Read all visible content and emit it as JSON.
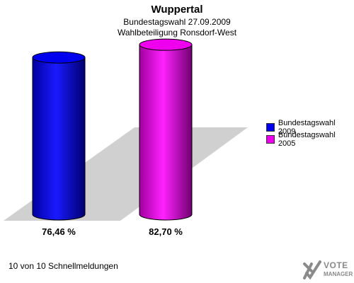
{
  "chart_data": {
    "type": "bar",
    "title": "Wuppertal",
    "subtitle_line1": "Bundestagswahl 27.09.2009",
    "subtitle_line2": "Wahlbeteiligung Ronsdorf-West",
    "categories": [
      "Bundestagswahl 2009",
      "Bundestagswahl 2005"
    ],
    "values": [
      76.46,
      82.7
    ],
    "value_labels": [
      "76,46 %",
      "82,70 %"
    ],
    "colors": [
      "#0000ee",
      "#ee00ee"
    ],
    "legend": [
      {
        "label": "Bundestagswahl 2009",
        "color": "#0000ee"
      },
      {
        "label": "Bundestagswahl 2005",
        "color": "#ee00ee"
      }
    ],
    "legend_position": "right",
    "ylim": [
      0,
      100
    ],
    "grid": false
  },
  "footer": "10 von 10 Schnellmeldungen",
  "logo": {
    "line1": "VOTE",
    "line2": "MANAGER",
    "icon": "x-check-icon"
  }
}
